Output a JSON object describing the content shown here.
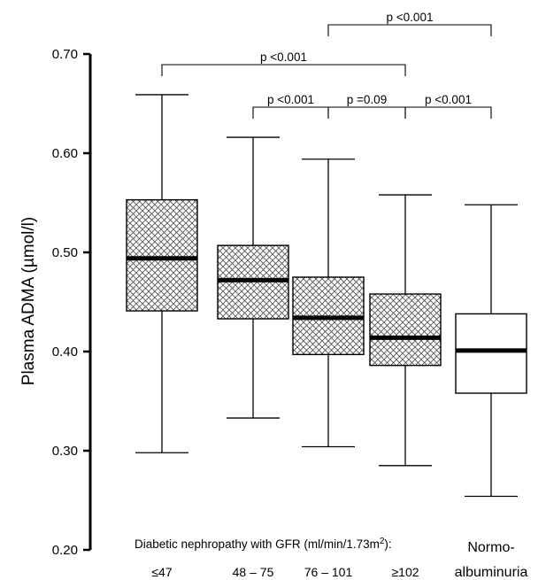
{
  "chart_data": {
    "type": "box",
    "ylabel": "Plasma ADMA (µmol/l)",
    "ylim": [
      0.2,
      0.7
    ],
    "yticks": [
      "0.20",
      "0.30",
      "0.40",
      "0.50",
      "0.60",
      "0.70"
    ],
    "group_caption": "Diabetic nephropathy with GFR (ml/min/1.73m",
    "group_caption_sup": "2",
    "group_caption_end": "):",
    "categories": [
      "≤47",
      "48 – 75",
      "76 – 101",
      "≥102",
      "Normo-albuminuria"
    ],
    "category_lines": [
      [
        "≤47"
      ],
      [
        "48 – 75"
      ],
      [
        "76 – 101"
      ],
      [
        "≥102"
      ],
      [
        "Normo-",
        "albuminuria"
      ]
    ],
    "boxes": [
      {
        "whisker_low": 0.298,
        "q1": 0.441,
        "median": 0.494,
        "q3": 0.553,
        "whisker_high": 0.659,
        "hatched": true
      },
      {
        "whisker_low": 0.333,
        "q1": 0.433,
        "median": 0.472,
        "q3": 0.507,
        "whisker_high": 0.616,
        "hatched": true
      },
      {
        "whisker_low": 0.304,
        "q1": 0.397,
        "median": 0.434,
        "q3": 0.475,
        "whisker_high": 0.594,
        "hatched": true
      },
      {
        "whisker_low": 0.285,
        "q1": 0.386,
        "median": 0.414,
        "q3": 0.458,
        "whisker_high": 0.558,
        "hatched": true
      },
      {
        "whisker_low": 0.254,
        "q1": 0.358,
        "median": 0.401,
        "q3": 0.438,
        "whisker_high": 0.548,
        "hatched": false
      }
    ],
    "comparisons": [
      {
        "from": 1,
        "to": 2,
        "label": "p <0.001",
        "level": 0
      },
      {
        "from": 2,
        "to": 3,
        "label": "p =0.09",
        "level": 0
      },
      {
        "from": 3,
        "to": 4,
        "label": "p <0.001",
        "level": 0
      },
      {
        "from": 0,
        "to": 3,
        "label": "p <0.001",
        "level": 1
      },
      {
        "from": 2,
        "to": 4,
        "label": "p <0.001",
        "level": 2
      }
    ]
  }
}
